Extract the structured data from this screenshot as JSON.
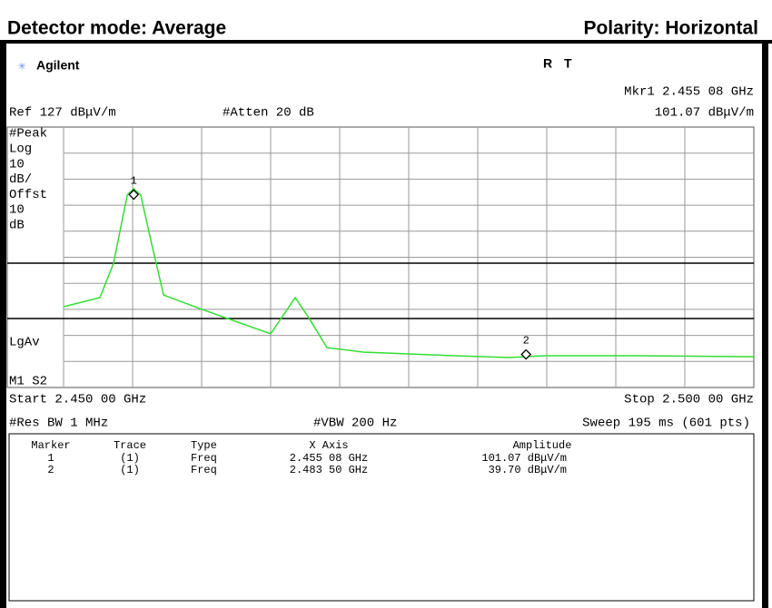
{
  "header": {
    "left": "Detector mode: Average",
    "right": "Polarity: Horizontal"
  },
  "screen": {
    "logo": "Agilent",
    "status": [
      "R",
      "T"
    ],
    "marker_readout": "Mkr1 2.455 08 GHz",
    "marker_amplitude": "101.07 dBμV/m",
    "ref_level": "Ref 127 dBμV/m",
    "attenuation": "#Atten 20 dB",
    "left_labels": [
      "#Peak",
      "Log",
      "10",
      "dB/",
      "Offst",
      "10",
      "dB"
    ],
    "lgav": "LgAv",
    "m1s2": "M1 S2",
    "start": "Start 2.450 00 GHz",
    "stop": "Stop 2.500 00 GHz",
    "res_bw": "#Res BW 1 MHz",
    "vbw": "#VBW 200 Hz",
    "sweep": "Sweep 195 ms (601 pts)"
  },
  "trace": {
    "color": "#33dd33",
    "xlim": [
      2.45,
      2.5
    ],
    "ylim": [
      27,
      127
    ],
    "x": [
      2.45,
      2.45263,
      2.45362,
      2.45461,
      2.45507,
      2.45559,
      2.45625,
      2.45724,
      2.45987,
      2.465,
      2.46579,
      2.46678,
      2.46776,
      2.46908,
      2.47171,
      2.47829,
      2.48224,
      2.48487,
      2.49145,
      2.5
    ],
    "values": [
      58,
      61.5,
      74.7,
      100.9,
      103.3,
      100.9,
      85.2,
      62.5,
      57.3,
      47.6,
      53.8,
      61.5,
      53.8,
      42.3,
      40.6,
      39.2,
      38.5,
      39.2,
      39.2,
      38.8
    ]
  },
  "markers": [
    {
      "label": "1",
      "x": 2.45508,
      "value": 101.07
    },
    {
      "label": "2",
      "x": 2.4835,
      "value": 39.7
    }
  ],
  "table": {
    "headers": [
      "Marker",
      "Trace",
      "Type",
      "X Axis",
      "Amplitude"
    ],
    "rows": [
      [
        "1",
        "(1)",
        "Freq",
        "2.455 08 GHz",
        "101.07 dBμV/m"
      ],
      [
        "2",
        "(1)",
        "Freq",
        "2.483 50 GHz",
        "39.70 dBμV/m"
      ]
    ]
  }
}
